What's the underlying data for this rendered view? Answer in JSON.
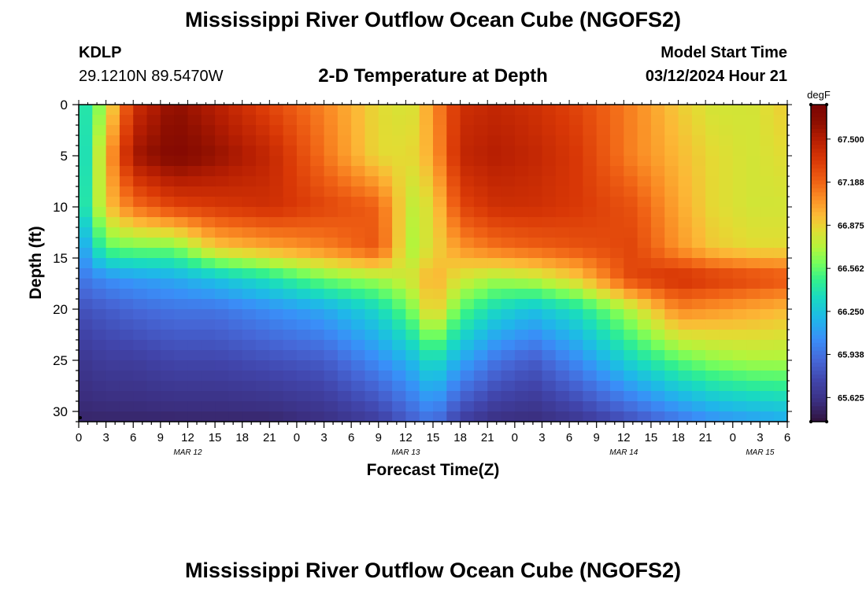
{
  "header": {
    "title": "Mississippi River Outflow Ocean Cube (NGOFS2)",
    "station": "KDLP",
    "coords": "29.1210N  89.5470W",
    "subtitle": "2-D Temperature at Depth",
    "model_start_label": "Model Start Time",
    "model_start_value": "03/12/2024 Hour 21",
    "footer_title": "Mississippi River Outflow Ocean Cube (NGOFS2)"
  },
  "chart_data": {
    "type": "heatmap",
    "title": "2-D Temperature at Depth",
    "xlabel": "Forecast Time(Z)",
    "ylabel": "Depth (ft)",
    "x_hours_range": [
      0,
      78
    ],
    "y_range": [
      0,
      31
    ],
    "x_tick_labels": [
      "0",
      "3",
      "6",
      "9",
      "12",
      "15",
      "18",
      "21",
      "0",
      "3",
      "6",
      "9",
      "12",
      "15",
      "18",
      "21",
      "0",
      "3",
      "6",
      "9",
      "12",
      "15",
      "18",
      "21",
      "0",
      "3",
      "6"
    ],
    "date_labels": [
      {
        "label": "MAR 12",
        "hour": 12
      },
      {
        "label": "MAR 13",
        "hour": 36
      },
      {
        "label": "MAR 14",
        "hour": 60
      },
      {
        "label": "MAR 15",
        "hour": 75
      }
    ],
    "y_ticks": [
      0,
      5,
      10,
      15,
      20,
      25,
      30
    ],
    "colorbar": {
      "units": "degF",
      "min": 65.45,
      "max": 67.75,
      "tick_labels": [
        "67.500",
        "67.188",
        "66.875",
        "66.562",
        "66.250",
        "65.938",
        "65.625"
      ],
      "tick_values": [
        67.5,
        67.188,
        66.875,
        66.562,
        66.25,
        65.938,
        65.625
      ]
    },
    "grid_time_step_hours": 1.5,
    "grid_depths_ft": [
      0,
      1,
      2,
      3,
      4,
      5,
      6,
      7,
      8,
      9,
      10,
      11,
      12,
      13,
      14,
      15,
      16,
      17,
      18,
      19,
      20,
      21,
      22,
      23,
      24,
      25,
      26,
      27,
      28,
      29,
      30,
      31
    ],
    "profile_hours": [
      0,
      3,
      6,
      10.5,
      15,
      21,
      27,
      33,
      36.5,
      39,
      42,
      46,
      50,
      55,
      61,
      66,
      70,
      74,
      78
    ],
    "profile_depths_ft": [
      0,
      5,
      10,
      14,
      17,
      20,
      25,
      31
    ],
    "profiles_degF": [
      [
        66.3,
        66.2,
        66.25,
        66.05,
        65.95,
        65.8,
        65.65,
        65.55
      ],
      [
        66.75,
        66.95,
        66.9,
        66.55,
        66.05,
        65.85,
        65.7,
        65.55
      ],
      [
        67.4,
        67.55,
        67.15,
        66.6,
        66.1,
        65.9,
        65.7,
        65.55
      ],
      [
        67.62,
        67.7,
        67.3,
        66.6,
        66.15,
        65.95,
        65.75,
        65.55
      ],
      [
        67.5,
        67.6,
        67.35,
        66.9,
        66.25,
        65.95,
        65.75,
        65.55
      ],
      [
        67.3,
        67.45,
        67.4,
        67.0,
        66.4,
        66.05,
        65.8,
        65.55
      ],
      [
        67.1,
        67.15,
        67.3,
        67.1,
        66.6,
        66.15,
        65.85,
        65.6
      ],
      [
        66.85,
        66.85,
        67.2,
        67.25,
        66.7,
        66.35,
        66.05,
        65.7
      ],
      [
        66.8,
        66.85,
        66.75,
        66.7,
        66.8,
        66.6,
        66.2,
        65.85
      ],
      [
        67.05,
        67.0,
        66.85,
        66.85,
        67.0,
        66.95,
        66.4,
        65.95
      ],
      [
        67.4,
        67.45,
        67.3,
        67.05,
        66.8,
        66.55,
        66.15,
        65.7
      ],
      [
        67.45,
        67.5,
        67.4,
        67.15,
        66.7,
        66.35,
        65.95,
        65.6
      ],
      [
        67.4,
        67.45,
        67.4,
        67.2,
        66.75,
        66.25,
        65.85,
        65.58
      ],
      [
        67.3,
        67.35,
        67.35,
        67.25,
        66.9,
        66.4,
        66.05,
        65.65
      ],
      [
        67.1,
        67.1,
        67.25,
        67.3,
        67.3,
        66.75,
        66.35,
        65.8
      ],
      [
        66.9,
        66.95,
        67.0,
        67.05,
        67.4,
        67.1,
        66.55,
        65.95
      ],
      [
        66.8,
        66.85,
        66.85,
        66.9,
        67.35,
        67.05,
        66.65,
        66.05
      ],
      [
        66.8,
        66.8,
        66.8,
        66.85,
        67.3,
        67.0,
        66.7,
        66.1
      ],
      [
        66.9,
        66.85,
        66.8,
        66.85,
        67.25,
        66.95,
        66.7,
        66.15
      ]
    ],
    "colormap": [
      [
        65.45,
        "#30123b"
      ],
      [
        65.6,
        "#3b2f80"
      ],
      [
        65.75,
        "#4145ab"
      ],
      [
        65.9,
        "#4668d8"
      ],
      [
        66.05,
        "#3a8ef8"
      ],
      [
        66.2,
        "#1fb7e9"
      ],
      [
        66.35,
        "#19d9c3"
      ],
      [
        66.48,
        "#33f08d"
      ],
      [
        66.6,
        "#74fe5d"
      ],
      [
        66.72,
        "#b5f43b"
      ],
      [
        66.85,
        "#e3db33"
      ],
      [
        66.95,
        "#fcb936"
      ],
      [
        67.08,
        "#fa8b24"
      ],
      [
        67.2,
        "#ef6014"
      ],
      [
        67.35,
        "#d93806"
      ],
      [
        67.5,
        "#b61e02"
      ],
      [
        67.62,
        "#8e0f01"
      ],
      [
        67.75,
        "#7a0403"
      ]
    ]
  }
}
